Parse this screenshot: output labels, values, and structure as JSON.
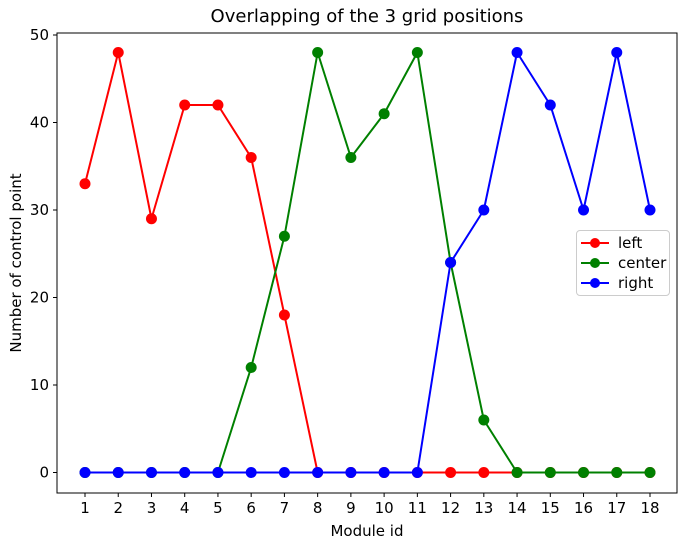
{
  "chart_data": {
    "type": "line",
    "title": "Overlapping of the 3 grid positions",
    "xlabel": "Module id",
    "ylabel": "Number of control point",
    "categories": [
      1,
      2,
      3,
      4,
      5,
      6,
      7,
      8,
      9,
      10,
      11,
      12,
      13,
      14,
      15,
      16,
      17,
      18
    ],
    "series": [
      {
        "name": "left",
        "color": "#ff0000",
        "values": [
          33,
          48,
          29,
          42,
          42,
          36,
          18,
          0,
          0,
          0,
          0,
          0,
          0,
          0,
          0,
          0,
          0,
          0
        ]
      },
      {
        "name": "center",
        "color": "#008000",
        "values": [
          0,
          0,
          0,
          0,
          0,
          12,
          27,
          48,
          36,
          41,
          48,
          24,
          6,
          0,
          0,
          0,
          0,
          0
        ]
      },
      {
        "name": "right",
        "color": "#0000ff",
        "values": [
          0,
          0,
          0,
          0,
          0,
          0,
          0,
          0,
          0,
          0,
          0,
          24,
          30,
          48,
          42,
          30,
          48,
          30
        ]
      }
    ],
    "yticks": [
      0,
      10,
      20,
      30,
      40,
      50
    ],
    "ylim": [
      -2.4,
      50.4
    ],
    "xlim": [
      0.15,
      18.85
    ],
    "grid": false,
    "legend_position": "center-right",
    "marker": "circle",
    "style": {
      "line_width": 2,
      "marker_diameter": 11,
      "axis_color": "#000000",
      "text_color": "#000000",
      "background": "#ffffff"
    }
  }
}
